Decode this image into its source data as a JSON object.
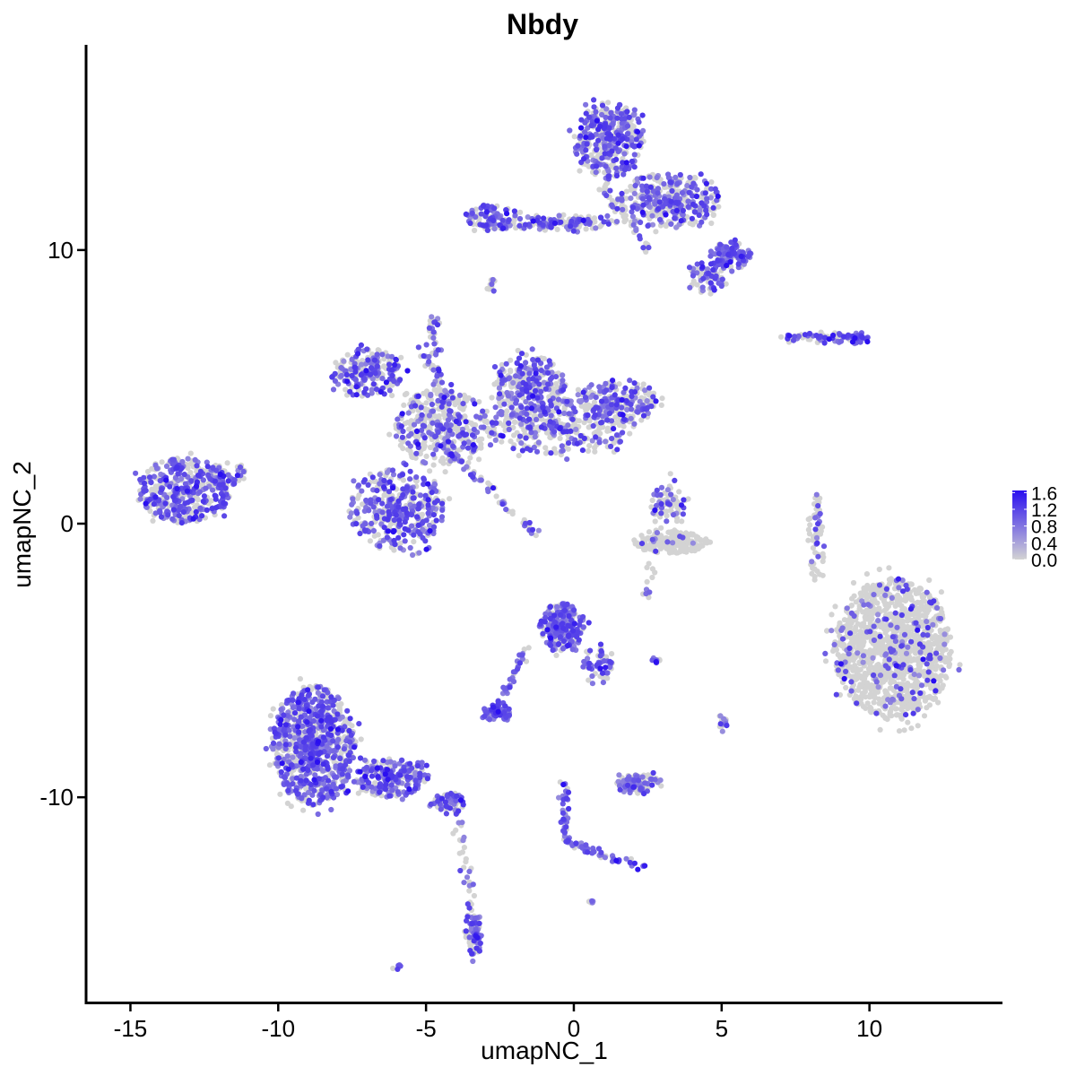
{
  "chart_data": {
    "type": "scatter",
    "title": "Nbdy",
    "xlabel": "umapNC_1",
    "ylabel": "umapNC_2",
    "xlim": [
      -16.5,
      14.5
    ],
    "ylim": [
      -17.5,
      17.5
    ],
    "xticks": [
      -15,
      -10,
      -5,
      0,
      5,
      10
    ],
    "yticks": [
      -10,
      0,
      10
    ],
    "xtick_labels": [
      "-15",
      "-10",
      "-5",
      "0",
      "5",
      "10"
    ],
    "ytick_labels": [
      "-10",
      "0",
      "10"
    ],
    "grid": false,
    "legend_position": "right",
    "colorbar": {
      "min": 0.0,
      "max": 1.65,
      "ticks": [
        0.0,
        0.4,
        0.8,
        1.2,
        1.6
      ],
      "tick_labels": [
        "0.0",
        "0.4",
        "0.8",
        "1.2",
        "1.6"
      ],
      "color_low": "#d3d3d3",
      "color_high": "#2a0ff0"
    },
    "clusters": [
      {
        "cx": -13.2,
        "cy": 1.2,
        "rx": 1.6,
        "ry": 1.2,
        "n": 420,
        "expr": 0.55
      },
      {
        "cx": -11.7,
        "cy": 1.8,
        "rx": 0.6,
        "ry": 0.6,
        "n": 40,
        "expr": 0.4
      },
      {
        "cx": -7.0,
        "cy": 5.5,
        "rx": 1.2,
        "ry": 0.9,
        "n": 220,
        "expr": 0.6
      },
      {
        "cx": -6.0,
        "cy": 0.5,
        "rx": 1.6,
        "ry": 1.5,
        "n": 400,
        "expr": 0.6
      },
      {
        "cx": -4.5,
        "cy": 3.5,
        "rx": 1.6,
        "ry": 1.4,
        "n": 380,
        "expr": 0.35
      },
      {
        "cx": -1.5,
        "cy": 5.0,
        "rx": 1.2,
        "ry": 1.2,
        "n": 280,
        "expr": 0.55
      },
      {
        "cx": -0.5,
        "cy": 3.5,
        "rx": 2.5,
        "ry": 1.0,
        "n": 360,
        "expr": 0.4
      },
      {
        "cx": 1.5,
        "cy": 4.5,
        "rx": 1.3,
        "ry": 0.8,
        "n": 220,
        "expr": 0.55
      },
      {
        "cx": -2.8,
        "cy": 11.2,
        "rx": 0.9,
        "ry": 0.5,
        "n": 100,
        "expr": 0.55
      },
      {
        "cx": -0.5,
        "cy": 11.0,
        "rx": 2.0,
        "ry": 0.3,
        "n": 100,
        "expr": 0.5
      },
      {
        "cx": 1.2,
        "cy": 14.0,
        "rx": 1.2,
        "ry": 1.4,
        "n": 380,
        "expr": 0.5
      },
      {
        "cx": 3.2,
        "cy": 11.8,
        "rx": 1.8,
        "ry": 1.0,
        "n": 360,
        "expr": 0.5
      },
      {
        "cx": 5.3,
        "cy": 9.8,
        "rx": 0.7,
        "ry": 0.5,
        "n": 110,
        "expr": 0.85
      },
      {
        "cx": 4.5,
        "cy": 9.0,
        "rx": 0.6,
        "ry": 0.6,
        "n": 70,
        "expr": 0.6
      },
      {
        "cx": 8.5,
        "cy": 6.8,
        "rx": 1.5,
        "ry": 0.2,
        "n": 70,
        "expr": 0.6
      },
      {
        "cx": 9.6,
        "cy": 6.8,
        "rx": 0.4,
        "ry": 0.2,
        "n": 35,
        "expr": 1.0
      },
      {
        "cx": 3.3,
        "cy": -0.7,
        "rx": 1.3,
        "ry": 0.4,
        "n": 200,
        "expr": 0.06
      },
      {
        "cx": 3.2,
        "cy": 0.7,
        "rx": 0.6,
        "ry": 0.7,
        "n": 60,
        "expr": 0.45
      },
      {
        "cx": 8.2,
        "cy": -0.5,
        "rx": 0.3,
        "ry": 1.6,
        "n": 60,
        "expr": 0.25
      },
      {
        "cx": 10.8,
        "cy": -4.6,
        "rx": 2.0,
        "ry": 2.6,
        "n": 1300,
        "expr": 0.1
      },
      {
        "cx": -0.4,
        "cy": -3.8,
        "rx": 0.8,
        "ry": 0.9,
        "n": 220,
        "expr": 0.75
      },
      {
        "cx": 0.8,
        "cy": -5.2,
        "rx": 0.5,
        "ry": 0.7,
        "n": 60,
        "expr": 0.6
      },
      {
        "cx": -2.6,
        "cy": -6.9,
        "rx": 0.5,
        "ry": 0.3,
        "n": 60,
        "expr": 1.0
      },
      {
        "cx": -8.8,
        "cy": -8.1,
        "rx": 1.4,
        "ry": 2.2,
        "n": 900,
        "expr": 0.6
      },
      {
        "cx": -6.2,
        "cy": -9.3,
        "rx": 1.3,
        "ry": 0.7,
        "n": 260,
        "expr": 0.55
      },
      {
        "cx": -4.3,
        "cy": -10.2,
        "rx": 0.6,
        "ry": 0.4,
        "n": 60,
        "expr": 0.6
      },
      {
        "cx": -3.4,
        "cy": -15.0,
        "rx": 0.3,
        "ry": 0.9,
        "n": 70,
        "expr": 0.6
      },
      {
        "cx": 2.2,
        "cy": -9.5,
        "rx": 0.8,
        "ry": 0.4,
        "n": 110,
        "expr": 0.55
      },
      {
        "cx": 5.0,
        "cy": -7.3,
        "rx": 0.2,
        "ry": 0.3,
        "n": 18,
        "expr": 0.55
      },
      {
        "cx": 2.8,
        "cy": -5.0,
        "rx": 0.3,
        "ry": 0.1,
        "n": 12,
        "expr": 0.55
      },
      {
        "cx": -2.8,
        "cy": 8.7,
        "rx": 0.15,
        "ry": 0.25,
        "n": 10,
        "expr": 0.6
      },
      {
        "cx": -4.7,
        "cy": 7.4,
        "rx": 0.2,
        "ry": 0.2,
        "n": 10,
        "expr": 0.6
      },
      {
        "cx": -6.0,
        "cy": -16.2,
        "rx": 0.15,
        "ry": 0.1,
        "n": 6,
        "expr": 0.7
      },
      {
        "cx": 0.6,
        "cy": -13.8,
        "rx": 0.1,
        "ry": 0.1,
        "n": 5,
        "expr": 0.7
      }
    ],
    "strands": [
      {
        "from": [
          -4.5,
          3.0
        ],
        "to": [
          -1.2,
          -0.5
        ],
        "n": 60,
        "expr": 0.45
      },
      {
        "from": [
          -4.8,
          7.5
        ],
        "to": [
          -4.5,
          4.5
        ],
        "n": 40,
        "expr": 0.4
      },
      {
        "from": [
          -5.2,
          6.5
        ],
        "to": [
          -3.8,
          3.2
        ],
        "n": 40,
        "expr": 0.45
      },
      {
        "from": [
          -1.6,
          -4.5
        ],
        "to": [
          -2.6,
          -6.7
        ],
        "n": 40,
        "expr": 0.7
      },
      {
        "from": [
          -0.3,
          -9.5
        ],
        "to": [
          -0.3,
          -11.6
        ],
        "n": 45,
        "expr": 0.75
      },
      {
        "from": [
          -0.3,
          -11.6
        ],
        "to": [
          2.4,
          -12.6
        ],
        "n": 50,
        "expr": 0.75
      },
      {
        "from": [
          -4.0,
          -10.5
        ],
        "to": [
          -3.4,
          -14.0
        ],
        "n": 35,
        "expr": 0.45
      },
      {
        "from": [
          -1.5,
          11.0
        ],
        "to": [
          0.2,
          11.0
        ],
        "n": 35,
        "expr": 0.55
      },
      {
        "from": [
          1.0,
          12.3
        ],
        "to": [
          2.5,
          10.0
        ],
        "n": 40,
        "expr": 0.45
      },
      {
        "from": [
          2.4,
          -2.6
        ],
        "to": [
          3.3,
          1.8
        ],
        "n": 30,
        "expr": 0.3
      }
    ]
  }
}
